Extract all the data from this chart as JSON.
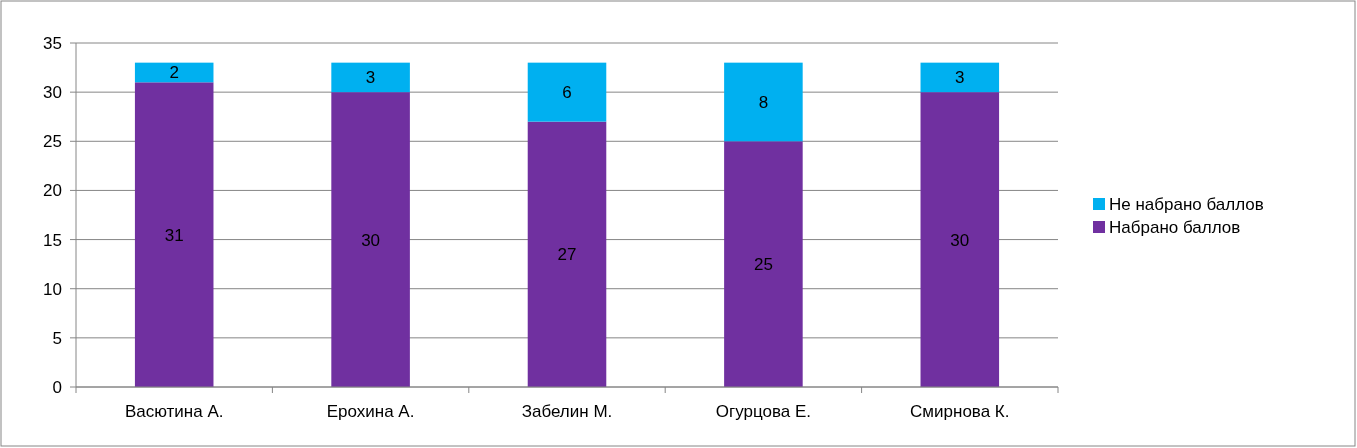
{
  "chart_data": {
    "type": "bar",
    "stacked": true,
    "categories": [
      "Васютина А.",
      "Ерохина А.",
      "Забелин М.",
      "Огурцова Е.",
      "Смирнова К."
    ],
    "series": [
      {
        "name": "Набрано баллов",
        "color": "#7030a0",
        "values": [
          31,
          30,
          27,
          25,
          30
        ]
      },
      {
        "name": "Не набрано баллов",
        "color": "#00b0f0",
        "values": [
          2,
          3,
          6,
          8,
          3
        ]
      }
    ],
    "ylim": [
      0,
      35
    ],
    "yticks": [
      0,
      5,
      10,
      15,
      20,
      25,
      30,
      35
    ],
    "grid": "y",
    "legend": "right",
    "data_labels": true
  }
}
